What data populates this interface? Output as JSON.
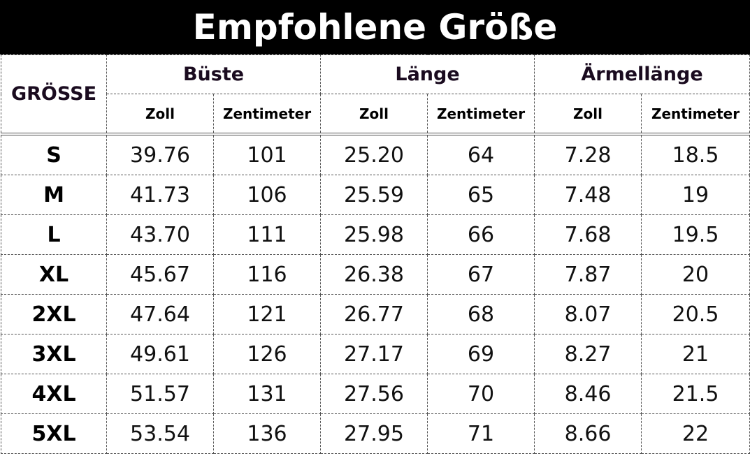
{
  "title": "Empfohlene Größe",
  "headers": {
    "size": "GRÖSSE",
    "groups": [
      "Büste",
      "Länge",
      "Ärmellänge"
    ],
    "units": [
      "Zoll",
      "Zentimeter",
      "Zoll",
      "Zentimeter",
      "Zoll",
      "Zentimeter"
    ]
  },
  "rows": [
    [
      "S",
      "39.76",
      "101",
      "25.20",
      "64",
      "7.28",
      "18.5"
    ],
    [
      "M",
      "41.73",
      "106",
      "25.59",
      "65",
      "7.48",
      "19"
    ],
    [
      "L",
      "43.70",
      "111",
      "25.98",
      "66",
      "7.68",
      "19.5"
    ],
    [
      "XL",
      "45.67",
      "116",
      "26.38",
      "67",
      "7.87",
      "20"
    ],
    [
      "2XL",
      "47.64",
      "121",
      "26.77",
      "68",
      "8.07",
      "20.5"
    ],
    [
      "3XL",
      "49.61",
      "126",
      "27.17",
      "69",
      "8.27",
      "21"
    ],
    [
      "4XL",
      "51.57",
      "131",
      "27.56",
      "70",
      "8.46",
      "21.5"
    ],
    [
      "5XL",
      "53.54",
      "136",
      "27.95",
      "71",
      "8.66",
      "22"
    ]
  ]
}
